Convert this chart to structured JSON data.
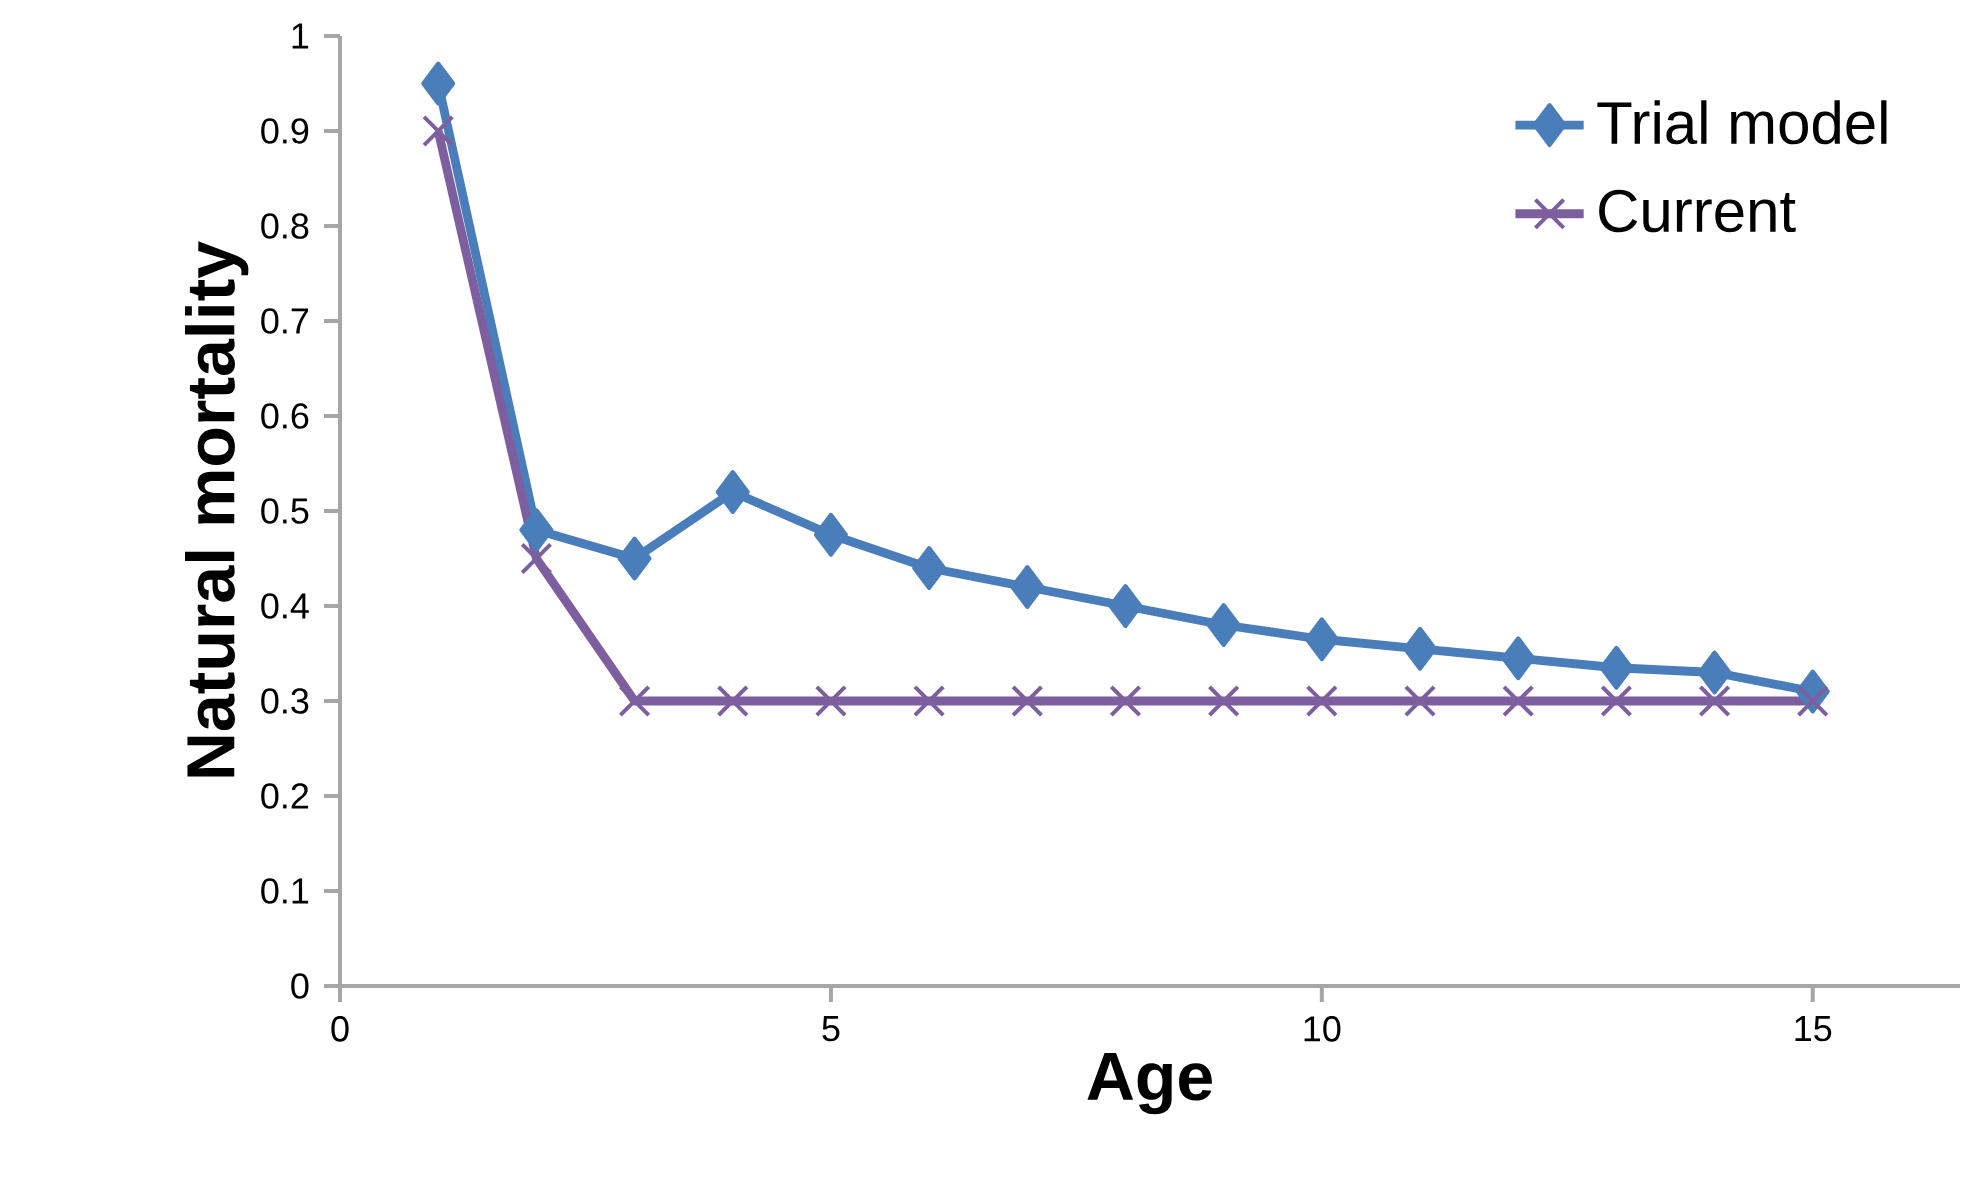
{
  "chart_data": {
    "type": "line",
    "xlabel": "Age",
    "ylabel": "Natural mortality",
    "xlim": [
      0,
      16.5
    ],
    "xticks": [
      0,
      5,
      10,
      15
    ],
    "ylim": [
      0,
      1
    ],
    "yticks": [
      0,
      0.1,
      0.2,
      0.3,
      0.4,
      0.5,
      0.6,
      0.7,
      0.8,
      0.9,
      1
    ],
    "grid": false,
    "legend": "top right",
    "line_style": "solid",
    "x": [
      1,
      2,
      3,
      4,
      5,
      6,
      7,
      8,
      9,
      10,
      11,
      12,
      13,
      14,
      15
    ],
    "series": [
      {
        "name": "Trial model",
        "color": "#4a7ebb",
        "marker": "diamond",
        "values": [
          0.95,
          0.48,
          0.45,
          0.52,
          0.475,
          0.44,
          0.42,
          0.4,
          0.38,
          0.365,
          0.355,
          0.345,
          0.335,
          0.33,
          0.31
        ]
      },
      {
        "name": "Current",
        "color": "#7d5fa0",
        "marker": "cross",
        "values": [
          0.9,
          0.45,
          0.3,
          0.3,
          0.3,
          0.3,
          0.3,
          0.3,
          0.3,
          0.3,
          0.3,
          0.3,
          0.3,
          0.3,
          0.3
        ]
      }
    ]
  }
}
